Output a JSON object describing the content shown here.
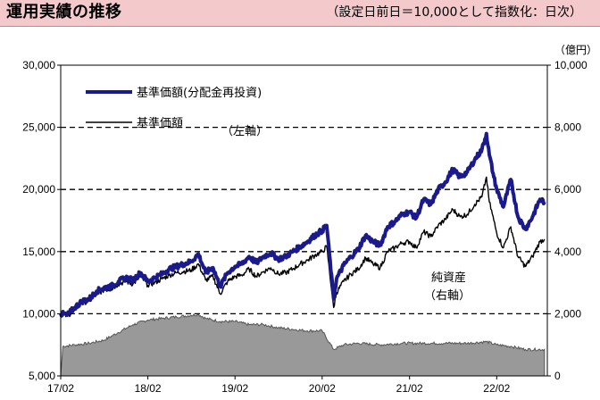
{
  "header": {
    "title": "運用実績の推移",
    "subtitle": "（設定日前日＝10,000として指数化：日次）"
  },
  "colors": {
    "header_bg": "#f3c9cc",
    "series_reinvested": "#1a1a8c",
    "series_nav": "#000000",
    "net_assets_fill": "#999999"
  },
  "chart_data": {
    "type": "line",
    "left_axis": {
      "ylim": [
        5000,
        30000
      ],
      "ticks": [
        "5,000",
        "10,000",
        "15,000",
        "20,000",
        "25,000",
        "30,000"
      ],
      "label": "（左軸）"
    },
    "right_axis": {
      "ylim": [
        0,
        10000
      ],
      "ticks": [
        "0",
        "2,000",
        "4,000",
        "6,000",
        "8,000",
        "10,000"
      ],
      "unit": "（億円）",
      "label": "（右軸）"
    },
    "x_ticks": [
      "17/02",
      "18/02",
      "19/02",
      "20/02",
      "21/02",
      "22/02"
    ],
    "grid": "horizontal dashed",
    "legend_position": "top-left",
    "series": [
      {
        "name": "基準価額(分配金再投資)",
        "axis": "left",
        "style": "thick",
        "points": [
          [
            "2017-02-01",
            10000
          ],
          [
            "2017-03-01",
            9900
          ],
          [
            "2017-04-01",
            10500
          ],
          [
            "2017-05-01",
            11000
          ],
          [
            "2017-06-01",
            11200
          ],
          [
            "2017-07-01",
            11800
          ],
          [
            "2017-08-01",
            12100
          ],
          [
            "2017-09-01",
            12200
          ],
          [
            "2017-10-01",
            12600
          ],
          [
            "2017-11-01",
            12900
          ],
          [
            "2017-12-01",
            12700
          ],
          [
            "2018-01-01",
            13300
          ],
          [
            "2018-02-01",
            12600
          ],
          [
            "2018-03-01",
            12900
          ],
          [
            "2018-04-01",
            13200
          ],
          [
            "2018-05-01",
            13600
          ],
          [
            "2018-06-01",
            13800
          ],
          [
            "2018-07-01",
            14000
          ],
          [
            "2018-08-01",
            14200
          ],
          [
            "2018-09-01",
            14800
          ],
          [
            "2018-10-01",
            13300
          ],
          [
            "2018-11-01",
            13700
          ],
          [
            "2018-12-01",
            12200
          ],
          [
            "2019-01-01",
            13300
          ],
          [
            "2019-02-01",
            13800
          ],
          [
            "2019-03-01",
            14000
          ],
          [
            "2019-04-01",
            14600
          ],
          [
            "2019-05-01",
            14100
          ],
          [
            "2019-06-01",
            14600
          ],
          [
            "2019-07-01",
            14900
          ],
          [
            "2019-08-01",
            14400
          ],
          [
            "2019-09-01",
            14600
          ],
          [
            "2019-10-01",
            15000
          ],
          [
            "2019-11-01",
            15400
          ],
          [
            "2019-12-01",
            15800
          ],
          [
            "2020-01-01",
            16300
          ],
          [
            "2020-02-01",
            16700
          ],
          [
            "2020-02-20",
            17100
          ],
          [
            "2020-03-20",
            11200
          ],
          [
            "2020-04-01",
            12800
          ],
          [
            "2020-05-01",
            13900
          ],
          [
            "2020-06-01",
            14600
          ],
          [
            "2020-07-01",
            15200
          ],
          [
            "2020-08-01",
            16300
          ],
          [
            "2020-09-01",
            15800
          ],
          [
            "2020-10-01",
            15500
          ],
          [
            "2020-11-01",
            17000
          ],
          [
            "2020-12-01",
            17400
          ],
          [
            "2021-01-01",
            18000
          ],
          [
            "2021-02-01",
            18200
          ],
          [
            "2021-03-01",
            17700
          ],
          [
            "2021-04-01",
            19200
          ],
          [
            "2021-05-01",
            18800
          ],
          [
            "2021-06-01",
            20000
          ],
          [
            "2021-07-01",
            20600
          ],
          [
            "2021-08-01",
            21600
          ],
          [
            "2021-09-01",
            21000
          ],
          [
            "2021-10-01",
            21400
          ],
          [
            "2021-11-01",
            22400
          ],
          [
            "2021-12-01",
            23200
          ],
          [
            "2021-12-20",
            24500
          ],
          [
            "2022-01-01",
            22800
          ],
          [
            "2022-01-20",
            21000
          ],
          [
            "2022-02-01",
            20000
          ],
          [
            "2022-03-01",
            18600
          ],
          [
            "2022-04-01",
            20800
          ],
          [
            "2022-05-01",
            17800
          ],
          [
            "2022-06-01",
            16800
          ],
          [
            "2022-07-01",
            17800
          ],
          [
            "2022-08-01",
            19200
          ],
          [
            "2022-08-20",
            19000
          ]
        ]
      },
      {
        "name": "基準価額",
        "axis": "left",
        "style": "thin",
        "points": [
          [
            "2017-02-01",
            10000
          ],
          [
            "2017-03-01",
            9800
          ],
          [
            "2017-04-01",
            10400
          ],
          [
            "2017-05-01",
            10900
          ],
          [
            "2017-06-01",
            11000
          ],
          [
            "2017-07-01",
            11600
          ],
          [
            "2017-08-01",
            11900
          ],
          [
            "2017-09-01",
            12000
          ],
          [
            "2017-10-01",
            12400
          ],
          [
            "2017-11-01",
            12600
          ],
          [
            "2017-12-01",
            12400
          ],
          [
            "2018-01-01",
            13000
          ],
          [
            "2018-02-01",
            12300
          ],
          [
            "2018-03-01",
            12500
          ],
          [
            "2018-04-01",
            12800
          ],
          [
            "2018-05-01",
            13100
          ],
          [
            "2018-06-01",
            13300
          ],
          [
            "2018-07-01",
            13400
          ],
          [
            "2018-08-01",
            13500
          ],
          [
            "2018-09-01",
            14000
          ],
          [
            "2018-10-01",
            12700
          ],
          [
            "2018-11-01",
            13000
          ],
          [
            "2018-12-01",
            11600
          ],
          [
            "2019-01-01",
            12600
          ],
          [
            "2019-02-01",
            13000
          ],
          [
            "2019-03-01",
            13100
          ],
          [
            "2019-04-01",
            13600
          ],
          [
            "2019-05-01",
            13000
          ],
          [
            "2019-06-01",
            13400
          ],
          [
            "2019-07-01",
            13700
          ],
          [
            "2019-08-01",
            13200
          ],
          [
            "2019-09-01",
            13300
          ],
          [
            "2019-10-01",
            13600
          ],
          [
            "2019-11-01",
            14000
          ],
          [
            "2019-12-01",
            14300
          ],
          [
            "2020-01-01",
            14700
          ],
          [
            "2020-02-01",
            15000
          ],
          [
            "2020-02-20",
            15400
          ],
          [
            "2020-03-20",
            10500
          ],
          [
            "2020-04-01",
            11700
          ],
          [
            "2020-05-01",
            12600
          ],
          [
            "2020-06-01",
            13200
          ],
          [
            "2020-07-01",
            13600
          ],
          [
            "2020-08-01",
            14500
          ],
          [
            "2020-09-01",
            14000
          ],
          [
            "2020-10-01",
            13700
          ],
          [
            "2020-11-01",
            15000
          ],
          [
            "2020-12-01",
            15300
          ],
          [
            "2021-01-01",
            15700
          ],
          [
            "2021-02-01",
            15800
          ],
          [
            "2021-03-01",
            15300
          ],
          [
            "2021-04-01",
            16600
          ],
          [
            "2021-05-01",
            16200
          ],
          [
            "2021-06-01",
            17100
          ],
          [
            "2021-07-01",
            17600
          ],
          [
            "2021-08-01",
            18400
          ],
          [
            "2021-09-01",
            17800
          ],
          [
            "2021-10-01",
            18000
          ],
          [
            "2021-11-01",
            18800
          ],
          [
            "2021-12-01",
            19400
          ],
          [
            "2021-12-20",
            21000
          ],
          [
            "2022-01-01",
            19000
          ],
          [
            "2022-01-20",
            17500
          ],
          [
            "2022-02-01",
            16500
          ],
          [
            "2022-03-01",
            15300
          ],
          [
            "2022-04-01",
            17000
          ],
          [
            "2022-05-01",
            14600
          ],
          [
            "2022-06-01",
            13800
          ],
          [
            "2022-07-01",
            14600
          ],
          [
            "2022-08-01",
            15800
          ],
          [
            "2022-08-20",
            16000
          ]
        ]
      },
      {
        "name": "純資産",
        "axis": "right",
        "style": "area",
        "points": [
          [
            "2017-02-01",
            0
          ],
          [
            "2017-02-10",
            950
          ],
          [
            "2017-04-01",
            1000
          ],
          [
            "2017-06-01",
            1050
          ],
          [
            "2017-08-01",
            1150
          ],
          [
            "2017-10-01",
            1400
          ],
          [
            "2017-12-01",
            1650
          ],
          [
            "2018-02-01",
            1800
          ],
          [
            "2018-04-01",
            1850
          ],
          [
            "2018-06-01",
            1900
          ],
          [
            "2018-08-01",
            1950
          ],
          [
            "2018-09-01",
            1980
          ],
          [
            "2018-10-01",
            1850
          ],
          [
            "2018-12-01",
            1750
          ],
          [
            "2019-02-01",
            1750
          ],
          [
            "2019-04-01",
            1650
          ],
          [
            "2019-06-01",
            1650
          ],
          [
            "2019-08-01",
            1550
          ],
          [
            "2019-10-01",
            1500
          ],
          [
            "2019-12-01",
            1450
          ],
          [
            "2020-02-01",
            1450
          ],
          [
            "2020-03-20",
            850
          ],
          [
            "2020-05-01",
            1000
          ],
          [
            "2020-07-01",
            1050
          ],
          [
            "2020-10-01",
            1000
          ],
          [
            "2021-01-01",
            1050
          ],
          [
            "2021-04-01",
            1050
          ],
          [
            "2021-07-01",
            1050
          ],
          [
            "2021-10-01",
            1050
          ],
          [
            "2021-12-20",
            1100
          ],
          [
            "2022-02-01",
            1000
          ],
          [
            "2022-04-01",
            950
          ],
          [
            "2022-06-01",
            850
          ],
          [
            "2022-08-20",
            850
          ]
        ]
      }
    ],
    "annotations": {
      "net_assets_label_1": "純資産",
      "net_assets_label_2": "（右軸）"
    }
  }
}
